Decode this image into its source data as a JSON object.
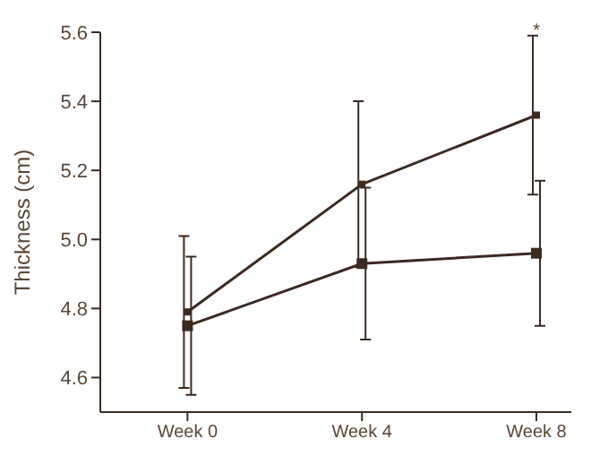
{
  "chart_data": {
    "type": "line",
    "ylabel": "Thickness (cm)",
    "categories": [
      "Week 0",
      "Week 4",
      "Week 8"
    ],
    "series": [
      {
        "color": "#3b2a20",
        "values": [
          4.79,
          5.16,
          5.36
        ],
        "errors": [
          0.22,
          0.24,
          0.23
        ]
      },
      {
        "color": "#3b2a20",
        "values": [
          4.75,
          4.93,
          4.96
        ],
        "errors": [
          0.2,
          0.22,
          0.21
        ]
      }
    ],
    "ylim": [
      4.5,
      5.6
    ],
    "yticks": [
      4.6,
      4.8,
      {
        "value": 5,
        "label": "5.0"
      },
      5.2,
      5.4,
      5.6
    ],
    "marker": "square",
    "line_style": "solid",
    "grid": false,
    "legend": false,
    "annotations": [
      "*"
    ]
  }
}
